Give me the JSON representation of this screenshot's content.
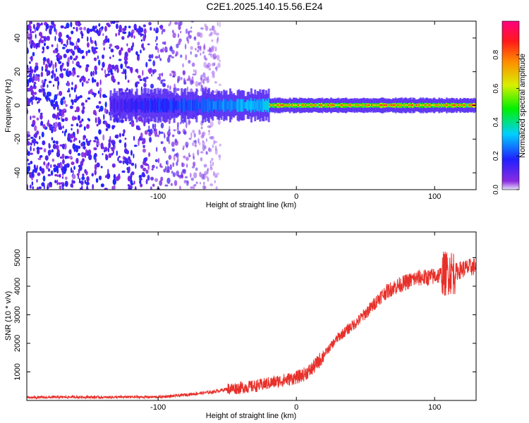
{
  "title": "C2E1.2025.140.15.56.E24",
  "chart_data": [
    {
      "type": "heatmap",
      "name": "spectrogram",
      "xlabel": "Height of straight line (km)",
      "ylabel": "Frequency (Hz)",
      "xlim": [
        -195,
        130
      ],
      "ylim": [
        -50,
        50
      ],
      "xticks": [
        -100,
        0,
        100
      ],
      "yticks": [
        -40,
        -20,
        0,
        20,
        40
      ],
      "colorbar": {
        "label": "Normalized spectral amplitude",
        "range": [
          0,
          1
        ],
        "ticks": [
          "0.0",
          "0.2",
          "0.4",
          "0.6",
          "0.8"
        ],
        "colormap": "rainbow (purple-blue-cyan-green-yellow-orange-red-magenta)"
      },
      "features": [
        {
          "x_range": [
            -195,
            -60
          ],
          "description": "broadband scattered noise, amplitude ~0.0-0.15"
        },
        {
          "x_range": [
            -110,
            -20
          ],
          "freq_center": 0,
          "amplitude_range": [
            0.2,
            0.5
          ]
        },
        {
          "x_range": [
            -20,
            130
          ],
          "freq_center": 0,
          "amplitude_range": [
            0.6,
            0.9
          ]
        }
      ]
    },
    {
      "type": "line",
      "name": "snr",
      "xlabel": "Height of straight line (km)",
      "ylabel": "SNR (10 * v/v)",
      "xlim": [
        -195,
        130
      ],
      "ylim": [
        0,
        5900
      ],
      "xticks": [
        -100,
        0,
        100
      ],
      "yticks": [
        1000,
        2000,
        3000,
        4000,
        5000
      ],
      "color": "#e8302a",
      "series": [
        {
          "x": [
            -195,
            -180,
            -160,
            -140,
            -120,
            -100,
            -90,
            -80,
            -70,
            -60,
            -50,
            -40,
            -30,
            -20,
            -10,
            0,
            5,
            10,
            15,
            20,
            25,
            30,
            35,
            40,
            45,
            50,
            55,
            60,
            65,
            70,
            75,
            80,
            85,
            90,
            95,
            100,
            105,
            108,
            110,
            112,
            115,
            120,
            125,
            130
          ],
          "y": [
            100,
            110,
            120,
            110,
            120,
            120,
            150,
            200,
            250,
            300,
            400,
            450,
            500,
            600,
            700,
            800,
            900,
            1050,
            1300,
            1600,
            1900,
            2200,
            2400,
            2600,
            2800,
            3050,
            3300,
            3600,
            3800,
            3950,
            4050,
            4150,
            4250,
            4300,
            4300,
            4350,
            4400,
            4450,
            4500,
            4500,
            4500,
            4600,
            4650,
            4700
          ]
        }
      ]
    }
  ]
}
